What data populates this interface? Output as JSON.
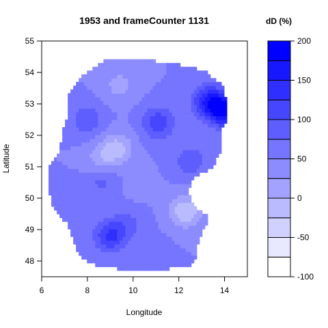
{
  "chart_data": {
    "type": "heatmap",
    "title": "1953 and frameCounter 1131",
    "xlabel": "Longitude",
    "ylabel": "Latitude",
    "xlim": [
      6,
      15
    ],
    "ylim": [
      47.5,
      55
    ],
    "xticks": [
      6,
      8,
      10,
      12,
      14
    ],
    "yticks": [
      48,
      49,
      50,
      51,
      52,
      53,
      54,
      55
    ],
    "legend": {
      "title": "dD (%)",
      "levels": [
        -100,
        -75,
        -50,
        -25,
        0,
        25,
        50,
        75,
        100,
        125,
        150,
        175,
        200
      ],
      "tick_labels": [
        -100,
        -50,
        0,
        50,
        100,
        150,
        200
      ],
      "colors": [
        "#ffffff",
        "#e8e8ff",
        "#d1d1ff",
        "#babaff",
        "#a3a3ff",
        "#8c8cff",
        "#7575ff",
        "#5e5eff",
        "#4646ff",
        "#2f2fff",
        "#1818ff",
        "#0000ff"
      ]
    },
    "grid": false,
    "region_bounds": {
      "lon": [
        6.3,
        14.1
      ],
      "lat": [
        47.8,
        54.45
      ]
    },
    "field_points": [
      {
        "lon": 8.0,
        "lat": 52.5,
        "value": 95
      },
      {
        "lon": 9.3,
        "lat": 51.6,
        "value": -10
      },
      {
        "lon": 8.6,
        "lat": 51.2,
        "value": 10
      },
      {
        "lon": 11.1,
        "lat": 52.4,
        "value": 120
      },
      {
        "lon": 13.3,
        "lat": 53.1,
        "value": 145
      },
      {
        "lon": 14.0,
        "lat": 52.8,
        "value": 185
      },
      {
        "lon": 9.0,
        "lat": 48.8,
        "value": 130
      },
      {
        "lon": 9.8,
        "lat": 49.2,
        "value": 80
      },
      {
        "lon": 12.3,
        "lat": 49.6,
        "value": -25
      },
      {
        "lon": 9.4,
        "lat": 53.6,
        "value": 15
      },
      {
        "lon": 10.2,
        "lat": 50.4,
        "value": 40
      },
      {
        "lon": 12.5,
        "lat": 51.2,
        "value": 95
      },
      {
        "lon": 7.0,
        "lat": 50.0,
        "value": 60
      },
      {
        "lon": 11.0,
        "lat": 48.4,
        "value": 55
      },
      {
        "lon": 8.6,
        "lat": 50.6,
        "value": 85
      }
    ]
  }
}
